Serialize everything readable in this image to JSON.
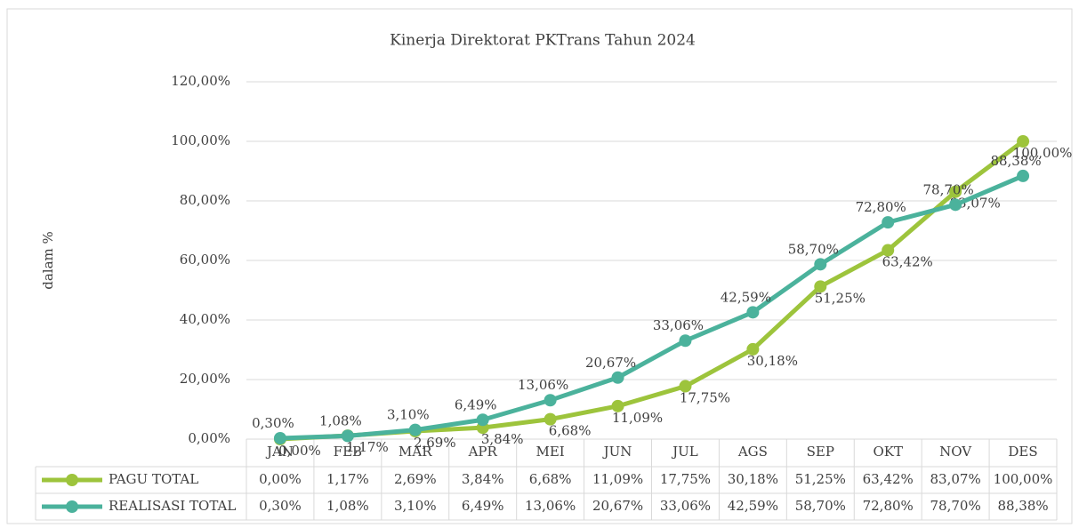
{
  "chart_data": {
    "type": "line",
    "title": "Kinerja Direktorat PKTrans Tahun 2024",
    "y_label": "dalam %",
    "categories": [
      "JAN",
      "FEB",
      "MAR",
      "APR",
      "MEI",
      "JUN",
      "JUL",
      "AGS",
      "SEP",
      "OKT",
      "NOV",
      "DES"
    ],
    "series": [
      {
        "name": "PAGU TOTAL",
        "color": "#9dc43c",
        "values": [
          0,
          1.17,
          2.69,
          3.84,
          6.68,
          11.09,
          17.75,
          30.18,
          51.25,
          63.42,
          83.07,
          100
        ],
        "value_labels": [
          "0,00%",
          "1,17%",
          "2,69%",
          "3,84%",
          "6,68%",
          "11,09%",
          "17,75%",
          "30,18%",
          "51,25%",
          "63,42%",
          "83,07%",
          "100,00%"
        ]
      },
      {
        "name": "REALISASI TOTAL",
        "color": "#4bb29c",
        "values": [
          0.3,
          1.08,
          3.1,
          6.49,
          13.06,
          20.67,
          33.06,
          42.59,
          58.7,
          72.8,
          78.7,
          88.38
        ],
        "value_labels": [
          "0,30%",
          "1,08%",
          "3,10%",
          "6,49%",
          "13,06%",
          "20,67%",
          "33,06%",
          "42,59%",
          "58,70%",
          "72,80%",
          "78,70%",
          "88,38%"
        ]
      }
    ],
    "ylim": [
      0,
      120
    ],
    "yticks": [
      {
        "value": 0,
        "label": "0,00%"
      },
      {
        "value": 20,
        "label": "20,00%"
      },
      {
        "value": 40,
        "label": "40,00%"
      },
      {
        "value": 60,
        "label": "60,00%"
      },
      {
        "value": 80,
        "label": "80,00%"
      },
      {
        "value": 100,
        "label": "100,00%"
      },
      {
        "value": 120,
        "label": "120,00%"
      }
    ],
    "grid": true
  }
}
